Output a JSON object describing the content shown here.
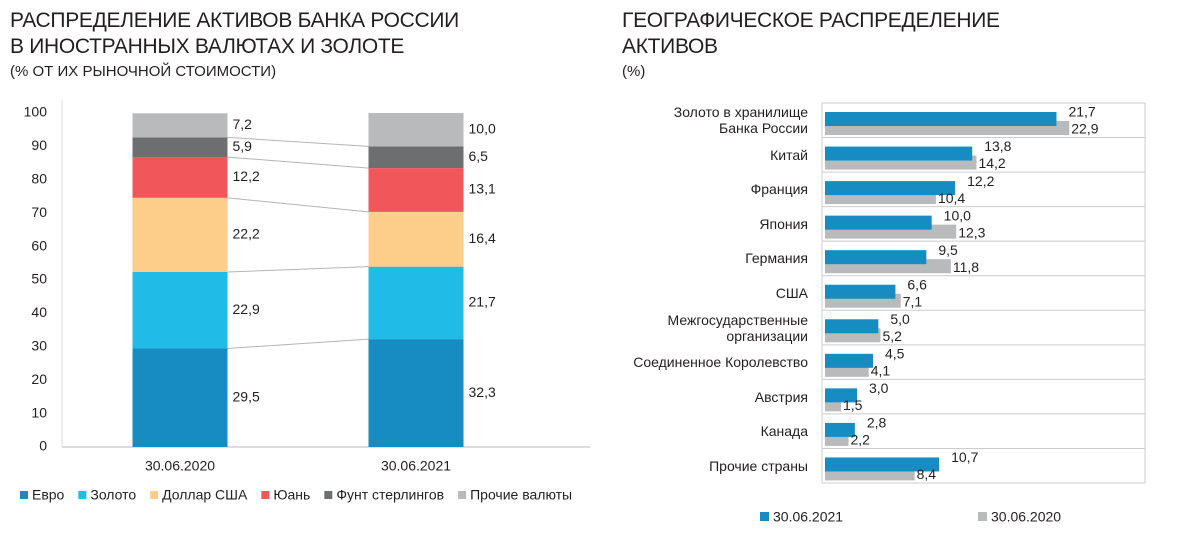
{
  "chart_data": [
    {
      "type": "stacked-bar",
      "title": "РАСПРЕДЕЛЕНИЕ АКТИВОВ БАНКА РОССИИ\nВ ИНОСТРАННЫХ ВАЛЮТАХ И ЗОЛОТЕ",
      "subtitle": "(% ОТ ИХ РЫНОЧНОЙ СТОИМОСТИ)",
      "categories": [
        "30.06.2020",
        "30.06.2021"
      ],
      "series": [
        {
          "name": "Евро",
          "color": "#178cc2",
          "values": [
            29.5,
            32.3
          ],
          "value_labels": [
            "29,5",
            "32,3"
          ]
        },
        {
          "name": "Золото",
          "color": "#21bbe8",
          "values": [
            22.9,
            21.7
          ],
          "value_labels": [
            "22,9",
            "21,7"
          ]
        },
        {
          "name": "Доллар США",
          "color": "#fdcd8a",
          "values": [
            22.2,
            16.4
          ],
          "value_labels": [
            "22,2",
            "16,4"
          ]
        },
        {
          "name": "Юань",
          "color": "#f0565a",
          "values": [
            12.2,
            13.1
          ],
          "value_labels": [
            "12,2",
            "13,1"
          ]
        },
        {
          "name": "Фунт стерлингов",
          "color": "#6d6e70",
          "values": [
            5.9,
            6.5
          ],
          "value_labels": [
            "5,9",
            "6,5"
          ]
        },
        {
          "name": "Прочие валюты",
          "color": "#b9babc",
          "values": [
            7.2,
            10.0
          ],
          "value_labels": [
            "7,2",
            "10,0"
          ]
        }
      ],
      "ylim": [
        0,
        100
      ],
      "yticks": [
        0,
        10,
        20,
        30,
        40,
        50,
        60,
        70,
        80,
        90,
        100
      ]
    },
    {
      "type": "hbar",
      "title": "ГЕОГРАФИЧЕСКОЕ РАСПРЕДЕЛЕНИЕ\nАКТИВОВ",
      "subtitle": "(%)",
      "categories": [
        "Золото в хранилище\nБанка России",
        "Китай",
        "Франция",
        "Япония",
        "Германия",
        "США",
        "Межгосударственные\nорганизации",
        "Соединенное Королевство",
        "Австрия",
        "Канада",
        "Прочие страны"
      ],
      "series": [
        {
          "name": "30.06.2021",
          "color": "#178cc2",
          "values": [
            21.7,
            13.8,
            12.2,
            10.0,
            9.5,
            6.6,
            5.0,
            4.5,
            3.0,
            2.8,
            10.7
          ],
          "value_labels": [
            "21,7",
            "13,8",
            "12,2",
            "10,0",
            "9,5",
            "6,6",
            "5,0",
            "4,5",
            "3,0",
            "2,8",
            "10,7"
          ]
        },
        {
          "name": "30.06.2020",
          "color": "#b9babc",
          "values": [
            22.9,
            14.2,
            10.4,
            12.3,
            11.8,
            7.1,
            5.2,
            4.1,
            1.5,
            2.2,
            8.4
          ],
          "value_labels": [
            "22,9",
            "14,2",
            "10,4",
            "12,3",
            "11,8",
            "7,1",
            "5,2",
            "4,1",
            "1,5",
            "2,2",
            "8,4"
          ]
        }
      ],
      "xlim": [
        0,
        30
      ]
    }
  ]
}
